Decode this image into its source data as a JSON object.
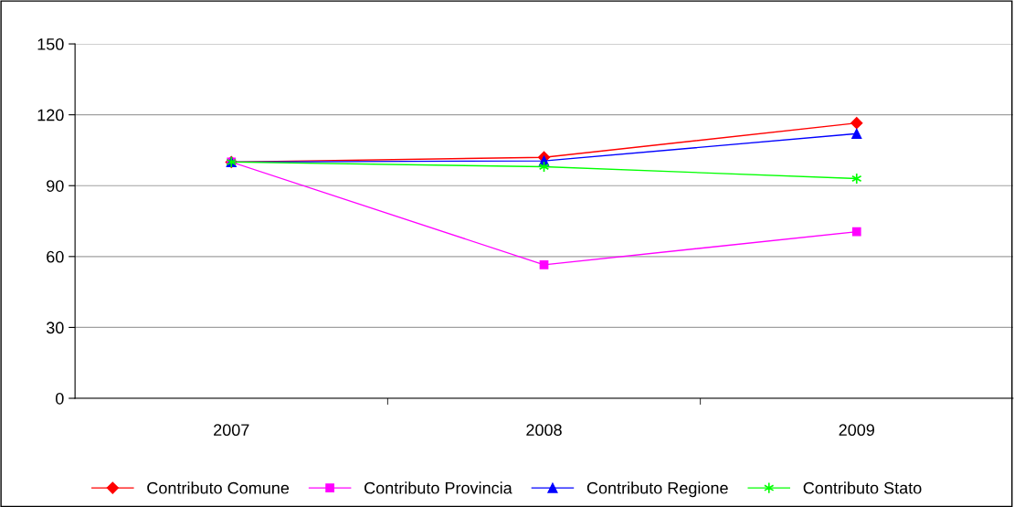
{
  "chart_data": {
    "type": "line",
    "categories": [
      "2007",
      "2008",
      "2009"
    ],
    "series": [
      {
        "name": "Contributo Comune",
        "color": "#ff0000",
        "marker": "diamond",
        "values": [
          100,
          102,
          116.5
        ]
      },
      {
        "name": "Contributo Provincia",
        "color": "#ff00ff",
        "marker": "square",
        "values": [
          100,
          56.5,
          70.5
        ]
      },
      {
        "name": "Contributo Regione",
        "color": "#0000ff",
        "marker": "triangle",
        "values": [
          100,
          100.5,
          112
        ]
      },
      {
        "name": "Contributo Stato",
        "color": "#00ff00",
        "marker": "cross",
        "values": [
          100,
          98,
          93
        ]
      }
    ],
    "ylim": [
      0,
      150
    ],
    "yticks": [
      0,
      30,
      60,
      90,
      120,
      150
    ],
    "grid": "y",
    "legend": "bottom"
  }
}
